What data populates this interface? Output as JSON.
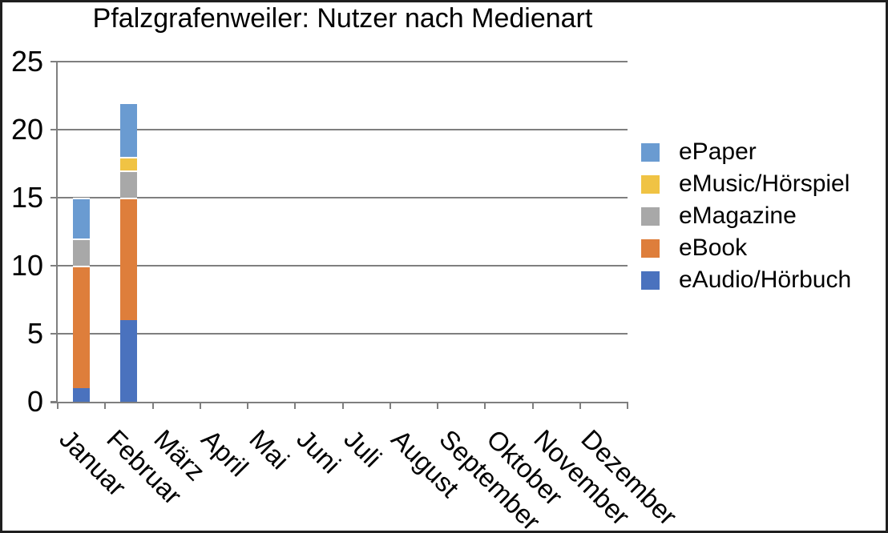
{
  "chart_data": {
    "type": "bar",
    "stacked": true,
    "title": "Pfalzgrafenweiler: Nutzer nach Medienart",
    "categories": [
      "Januar",
      "Februar",
      "März",
      "April",
      "Mai",
      "Juni",
      "Juli",
      "August",
      "September",
      "Oktober",
      "November",
      "Dezember"
    ],
    "series": [
      {
        "name": "eAudio/Hörbuch",
        "color": "#4A72BE",
        "values": [
          1,
          6,
          0,
          0,
          0,
          0,
          0,
          0,
          0,
          0,
          0,
          0
        ]
      },
      {
        "name": "eBook",
        "color": "#DE7E3B",
        "values": [
          9,
          9,
          0,
          0,
          0,
          0,
          0,
          0,
          0,
          0,
          0,
          0
        ]
      },
      {
        "name": "eMagazine",
        "color": "#A8A8A8",
        "values": [
          2,
          2,
          0,
          0,
          0,
          0,
          0,
          0,
          0,
          0,
          0,
          0
        ]
      },
      {
        "name": "eMusic/Hörspiel",
        "color": "#F0C344",
        "values": [
          0,
          1,
          0,
          0,
          0,
          0,
          0,
          0,
          0,
          0,
          0,
          0
        ]
      },
      {
        "name": "ePaper",
        "color": "#6A9BD1",
        "values": [
          3,
          4,
          0,
          0,
          0,
          0,
          0,
          0,
          0,
          0,
          0,
          0
        ]
      }
    ],
    "legend_order": [
      "ePaper",
      "eMusic/Hörspiel",
      "eMagazine",
      "eBook",
      "eAudio/Hörbuch"
    ],
    "legend_position": "right",
    "xlabel": "",
    "ylabel": "",
    "ylim": [
      0,
      25
    ],
    "yticks": [
      0,
      5,
      10,
      15,
      20,
      25
    ],
    "grid": true,
    "grid_color": "#7F7F7F",
    "axis_color": "#7F7F7F",
    "frame_color": "#1f1f1f",
    "background": "#ffffff"
  }
}
